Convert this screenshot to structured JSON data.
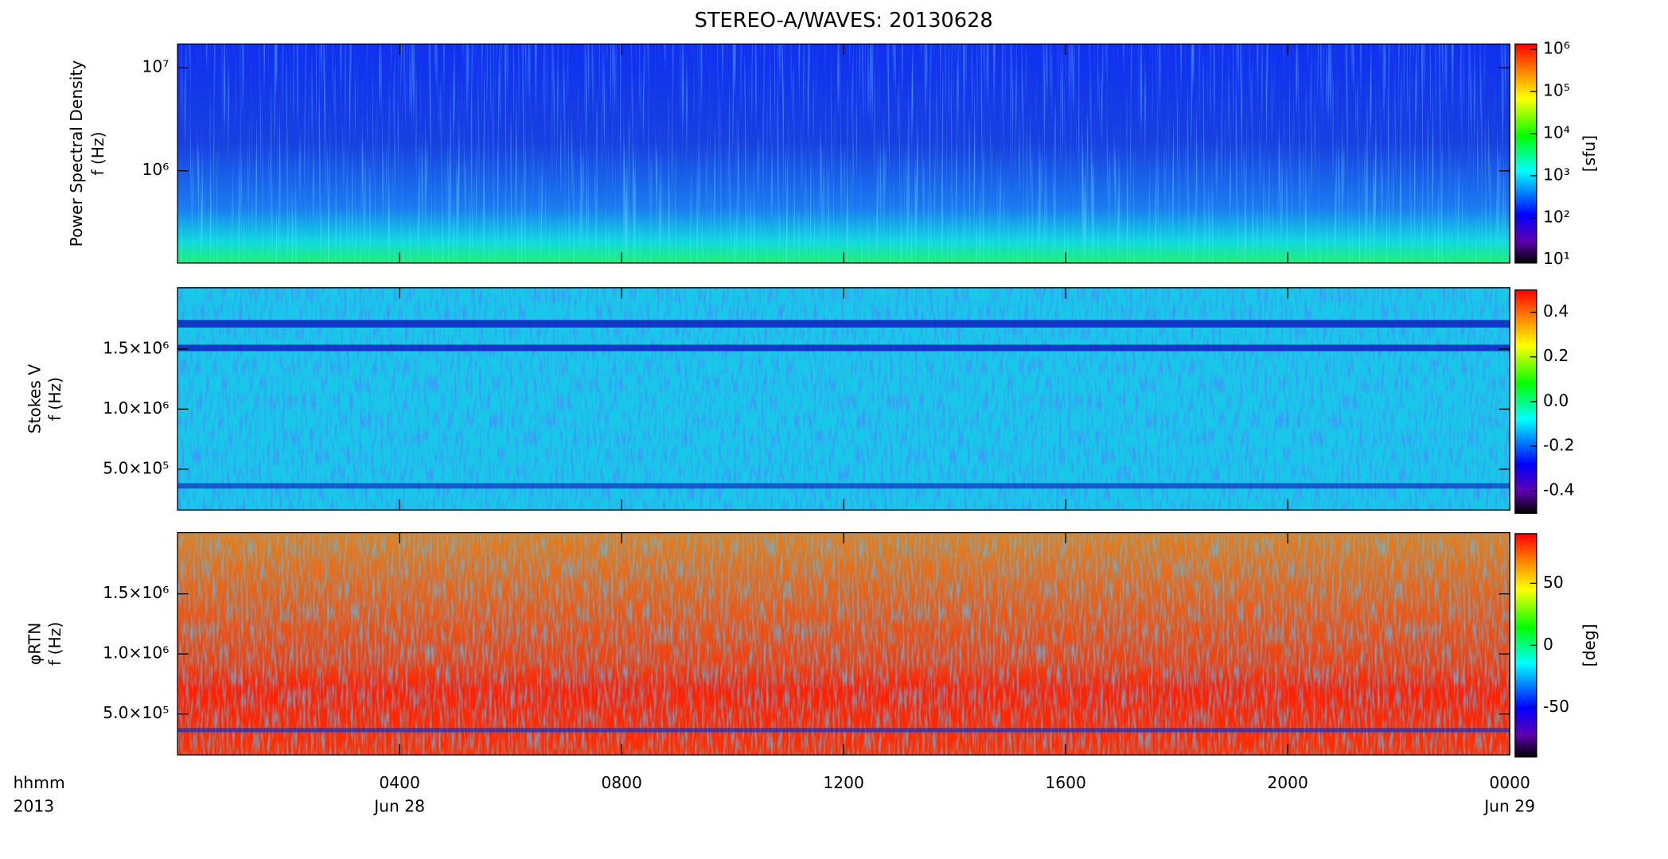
{
  "chart_data": [
    {
      "type": "heatmap",
      "title": "STEREO-A/WAVES: 20130628",
      "ylabel": [
        "Power Spectral Density",
        "f (Hz)"
      ],
      "ylog": true,
      "ylim": [
        127000,
        17000000
      ],
      "yticks": [
        {
          "value": 1000000,
          "label": "10⁶"
        },
        {
          "value": 10000000,
          "label": "10⁷"
        }
      ],
      "colorbar": {
        "log": true,
        "lim": [
          8.4,
          1340000
        ],
        "label": "[sfu]",
        "ticks": [
          {
            "value": 10,
            "label": "10¹"
          },
          {
            "value": 100,
            "label": "10²"
          },
          {
            "value": 1000,
            "label": "10³"
          },
          {
            "value": 10000,
            "label": "10⁴"
          },
          {
            "value": 100000,
            "label": "10⁵"
          },
          {
            "value": 1000000,
            "label": "10⁶"
          }
        ]
      }
    },
    {
      "type": "heatmap",
      "ylabel": [
        "Stokes V",
        "f (Hz)"
      ],
      "ylog": false,
      "ylim": [
        160000,
        2010000
      ],
      "yticks": [
        {
          "value": 500000,
          "label": "5.0×10⁵"
        },
        {
          "value": 1000000,
          "label": "1.0×10⁶"
        },
        {
          "value": 1500000,
          "label": "1.5×10⁶"
        }
      ],
      "colorbar": {
        "log": false,
        "lim": [
          -0.5,
          0.5
        ],
        "ticks": [
          -0.4,
          -0.2,
          {
            "value": 0,
            "label": "0.0"
          },
          0.2,
          0.4
        ]
      }
    },
    {
      "type": "heatmap",
      "ylabel": [
        "φRTN",
        "f (Hz)"
      ],
      "ylog": false,
      "ylim": [
        160000,
        2010000
      ],
      "yticks": [
        {
          "value": 500000,
          "label": "5.0×10⁵"
        },
        {
          "value": 1000000,
          "label": "1.0×10⁶"
        },
        {
          "value": 1500000,
          "label": "1.5×10⁶"
        }
      ],
      "colorbar": {
        "log": false,
        "lim": [
          -90,
          90
        ],
        "label": "[deg]",
        "ticks": [
          -50,
          0,
          50
        ]
      },
      "xlabel": [
        "hhmm",
        "2013"
      ],
      "xlim": [
        0,
        24
      ],
      "xticks": [
        {
          "value": 4,
          "label": "0400"
        },
        {
          "value": 8,
          "label": "0800"
        },
        {
          "value": 12,
          "label": "1200"
        },
        {
          "value": 16,
          "label": "1600"
        },
        {
          "value": 20,
          "label": "2000"
        },
        {
          "value": 24,
          "label": "0000"
        }
      ],
      "xdates": [
        {
          "value": 4,
          "label": "Jun 28"
        },
        {
          "value": 24,
          "label": "Jun 29"
        }
      ]
    }
  ]
}
